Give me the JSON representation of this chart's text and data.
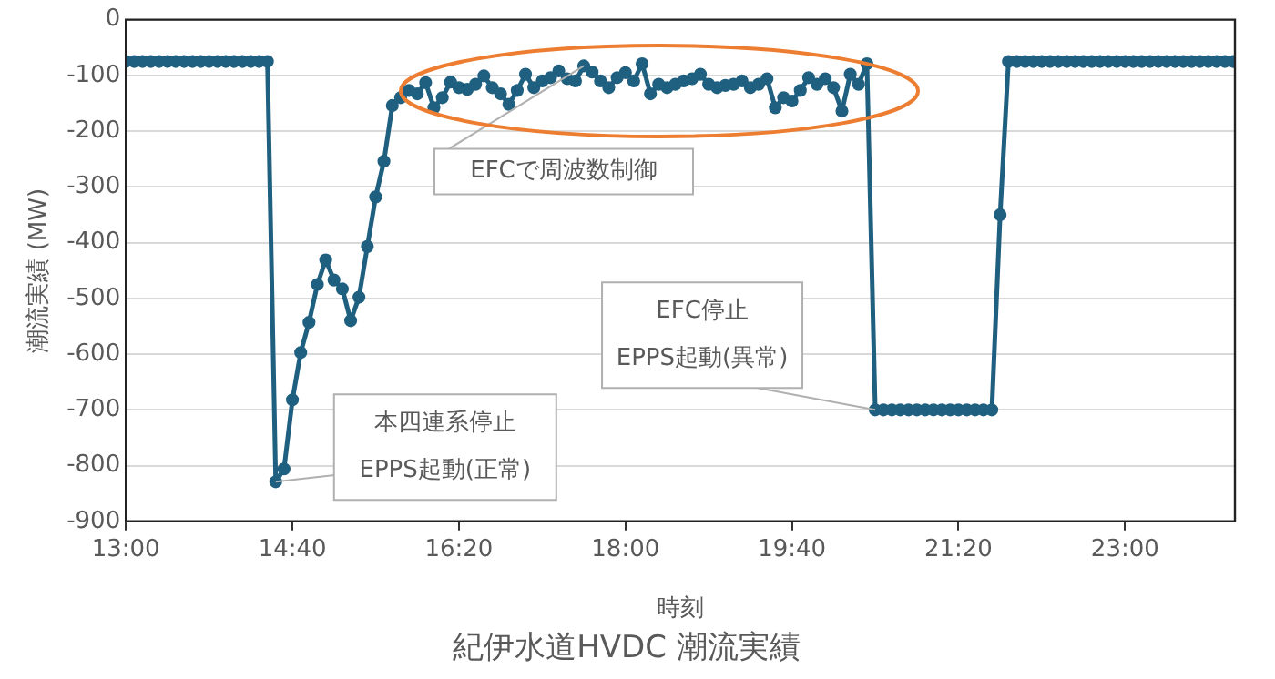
{
  "chart_data": {
    "type": "line",
    "title": "紀伊水道HVDC 潮流実績",
    "xlabel": "時刻",
    "ylabel": "潮流実績 (MW)",
    "xlim": [
      13,
      24.1
    ],
    "ylim": [
      -900,
      0
    ],
    "xticks": [
      {
        "value": 13,
        "label": "13:00"
      },
      {
        "value": 14.667,
        "label": "14:40"
      },
      {
        "value": 16.333,
        "label": "16:20"
      },
      {
        "value": 18,
        "label": "18:00"
      },
      {
        "value": 19.667,
        "label": "19:40"
      },
      {
        "value": 21.333,
        "label": "21:20"
      },
      {
        "value": 23,
        "label": "23:00"
      }
    ],
    "yticks": [
      0,
      -100,
      -200,
      -300,
      -400,
      -500,
      -600,
      -700,
      -800,
      -900
    ],
    "grid": "y",
    "legend": false,
    "marker": "circle",
    "line_style": "solid",
    "x": [
      13,
      13.083,
      13.167,
      13.25,
      13.333,
      13.417,
      13.5,
      13.583,
      13.667,
      13.75,
      13.833,
      13.917,
      14,
      14.083,
      14.167,
      14.25,
      14.333,
      14.417,
      14.5,
      14.583,
      14.667,
      14.75,
      14.833,
      14.917,
      15,
      15.083,
      15.167,
      15.25,
      15.333,
      15.417,
      15.5,
      15.583,
      15.667,
      15.75,
      15.833,
      15.917,
      16,
      16.083,
      16.167,
      16.25,
      16.333,
      16.417,
      16.5,
      16.583,
      16.667,
      16.75,
      16.833,
      16.917,
      17,
      17.083,
      17.167,
      17.25,
      17.333,
      17.417,
      17.5,
      17.583,
      17.667,
      17.75,
      17.833,
      17.917,
      18,
      18.083,
      18.167,
      18.25,
      18.333,
      18.417,
      18.5,
      18.583,
      18.667,
      18.75,
      18.833,
      18.917,
      19,
      19.083,
      19.167,
      19.25,
      19.333,
      19.417,
      19.5,
      19.583,
      19.667,
      19.75,
      19.833,
      19.917,
      20,
      20.083,
      20.167,
      20.25,
      20.333,
      20.417,
      20.5,
      20.583,
      20.667,
      20.75,
      20.833,
      20.917,
      21,
      21.083,
      21.167,
      21.25,
      21.333,
      21.417,
      21.5,
      21.583,
      21.667,
      21.75,
      21.833,
      21.917,
      22,
      22.083,
      22.167,
      22.25,
      22.333,
      22.417,
      22.5,
      22.583,
      22.667,
      22.75,
      22.833,
      22.917,
      23,
      23.083,
      23.167,
      23.25,
      23.333,
      23.417,
      23.5,
      23.583,
      23.667,
      23.75,
      23.833,
      23.917,
      24,
      24.083
    ],
    "series": [
      {
        "color": "#1f5f7f",
        "values": [
          -75,
          -75,
          -75,
          -75,
          -75,
          -75,
          -75,
          -75,
          -75,
          -75,
          -75,
          -75,
          -75,
          -75,
          -75,
          -75,
          -75,
          -75,
          -829,
          -806,
          -682,
          -597,
          -543,
          -475,
          -431,
          -467,
          -483,
          -540,
          -498,
          -407,
          -318,
          -254,
          -154,
          -140,
          -127,
          -133,
          -113,
          -158,
          -140,
          -112,
          -122,
          -125,
          -116,
          -101,
          -122,
          -133,
          -152,
          -127,
          -98,
          -122,
          -110,
          -104,
          -92,
          -106,
          -110,
          -83,
          -94,
          -110,
          -122,
          -104,
          -95,
          -110,
          -79,
          -133,
          -116,
          -122,
          -116,
          -110,
          -106,
          -98,
          -116,
          -122,
          -118,
          -116,
          -110,
          -122,
          -116,
          -106,
          -158,
          -140,
          -146,
          -127,
          -104,
          -116,
          -106,
          -122,
          -164,
          -98,
          -116,
          -79,
          -700,
          -700,
          -700,
          -700,
          -700,
          -700,
          -700,
          -700,
          -700,
          -700,
          -700,
          -700,
          -700,
          -700,
          -700,
          -350,
          -75,
          -75,
          -75,
          -75,
          -75,
          -75,
          -75,
          -75,
          -75,
          -75,
          -75,
          -75,
          -75,
          -75,
          -75,
          -75,
          -75,
          -75,
          -75,
          -75,
          -75,
          -75,
          -75,
          -75,
          -75,
          -75,
          -75,
          -75
        ]
      }
    ],
    "annotations": [
      {
        "text": "EFCで周波数制御",
        "x": 17.583,
        "y": -83
      },
      {
        "text": "本四連系停止\nEPPS起動(正常)",
        "x": 14.5,
        "y": -829
      },
      {
        "text": "EFC停止\nEPPS起動(異常)",
        "x": 20.5,
        "y": -700
      }
    ]
  }
}
